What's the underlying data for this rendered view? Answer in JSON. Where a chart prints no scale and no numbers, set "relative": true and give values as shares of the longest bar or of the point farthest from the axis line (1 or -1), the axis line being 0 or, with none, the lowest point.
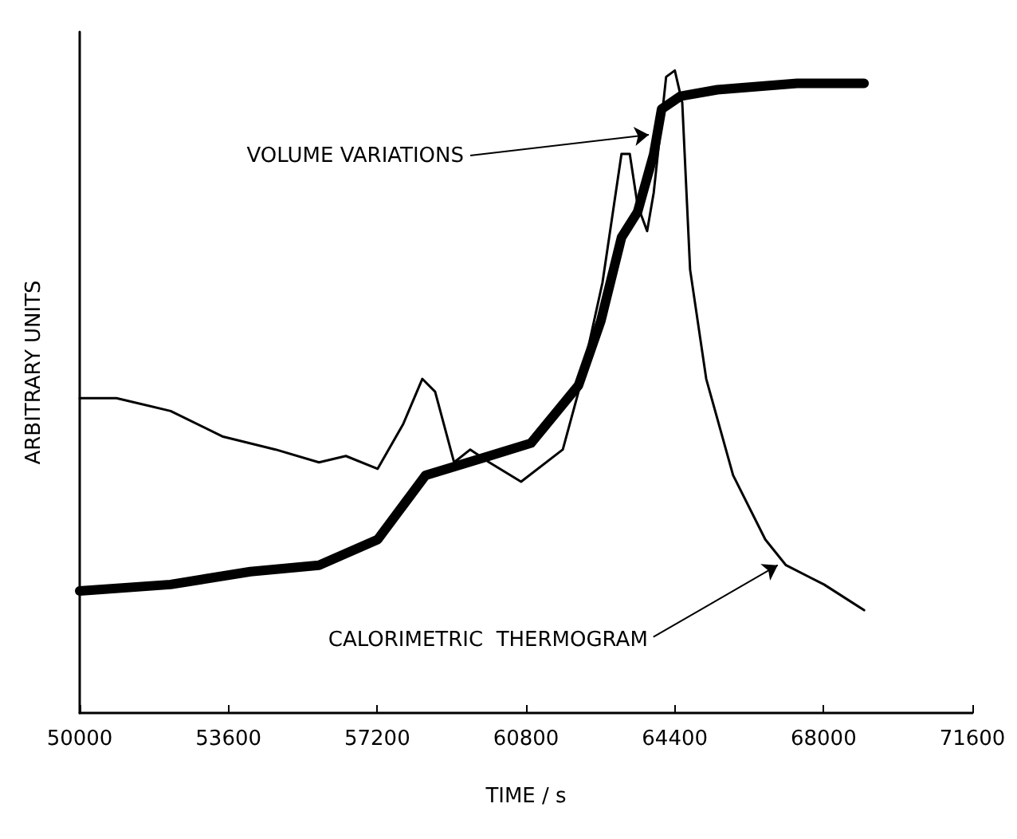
{
  "chart_data": {
    "type": "line",
    "xlabel": "TIME / s",
    "ylabel": "ARBITRARY UNITS",
    "relative": true,
    "xlim": [
      50000,
      71600
    ],
    "xticks": [
      50000,
      53600,
      57200,
      60800,
      64400,
      68000,
      71600
    ],
    "grid": false,
    "marker": "none",
    "line_style": "solid",
    "series": [
      {
        "color": "#000000",
        "x": [
          50000,
          50890,
          52200,
          53470,
          54740,
          55790,
          56440,
          57210,
          57830,
          58290,
          58600,
          59060,
          59450,
          59910,
          60680,
          61690,
          62070,
          62650,
          63110,
          63310,
          63500,
          63730,
          63890,
          64190,
          64400,
          64580,
          64770,
          65160,
          65810,
          66590,
          67090,
          68010,
          68980
        ],
        "values": [
          0.49,
          0.49,
          0.47,
          0.43,
          0.41,
          0.39,
          0.4,
          0.38,
          0.45,
          0.52,
          0.5,
          0.39,
          0.41,
          0.39,
          0.36,
          0.41,
          0.5,
          0.67,
          0.87,
          0.87,
          0.79,
          0.75,
          0.81,
          0.99,
          1,
          0.95,
          0.69,
          0.52,
          0.37,
          0.27,
          0.23,
          0.2,
          0.16
        ]
      },
      {
        "color": "#000000",
        "x": [
          50000,
          52200,
          54130,
          55790,
          57210,
          58370,
          59910,
          60920,
          62070,
          62610,
          63110,
          63500,
          63890,
          64080,
          64540,
          65430,
          67360,
          68980
        ],
        "values": [
          0.19,
          0.2,
          0.22,
          0.23,
          0.27,
          0.37,
          0.4,
          0.42,
          0.51,
          0.61,
          0.74,
          0.78,
          0.87,
          0.94,
          0.96,
          0.97,
          0.98,
          0.98
        ]
      }
    ],
    "annotations": [
      {
        "text": "VOLUME VARIATIONS",
        "x": 63770,
        "y": 0.9
      },
      {
        "text": "CALORIMETRIC  THERMOGRAM",
        "x": 66890,
        "y": 0.23
      }
    ]
  }
}
